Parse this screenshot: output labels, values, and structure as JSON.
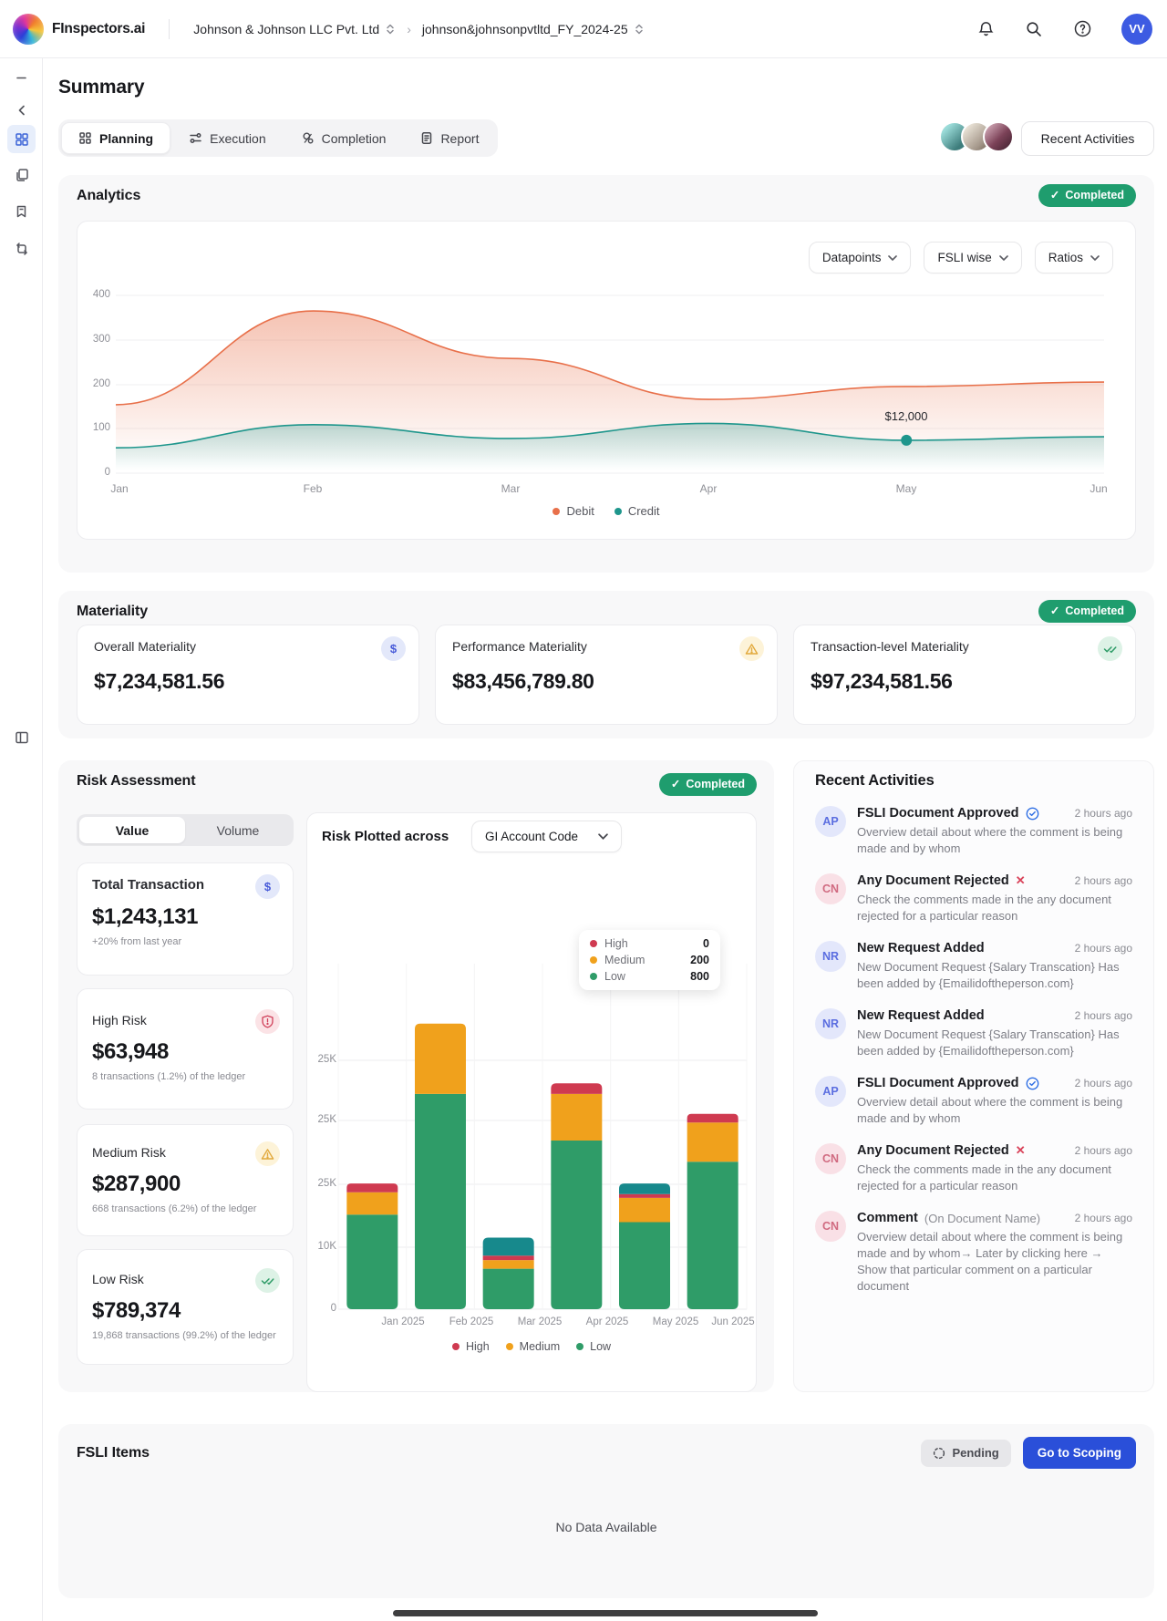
{
  "topbar": {
    "brand": "FInspectors.ai",
    "breadcrumb": {
      "client": "Johnson & Johnson LLC Pvt. Ltd",
      "engagement": "johnson&johnsonpvtltd_FY_2024-25"
    },
    "avatar_initials": "VV"
  },
  "page_title": "Summary",
  "tabs": [
    {
      "label": "Planning"
    },
    {
      "label": "Execution"
    },
    {
      "label": "Completion"
    },
    {
      "label": "Report"
    }
  ],
  "recent_activities_button": "Recent Activities",
  "status": {
    "completed": "Completed",
    "pending": "Pending"
  },
  "analytics": {
    "title": "Analytics",
    "dropdowns": [
      "Datapoints",
      "FSLI wise",
      "Ratios"
    ]
  },
  "materiality": {
    "title": "Materiality",
    "cards": [
      {
        "label": "Overall Materiality",
        "value": "$7,234,581.56"
      },
      {
        "label": "Performance Materiality",
        "value": "$83,456,789.80"
      },
      {
        "label": "Transaction-level Materiality",
        "value": "$97,234,581.56"
      }
    ]
  },
  "risk": {
    "title": "Risk Assessment",
    "toggle": [
      "Value",
      "Volume"
    ],
    "cards": [
      {
        "label": "Total Transaction",
        "value": "$1,243,131",
        "note": "+20% from last year"
      },
      {
        "label": "High Risk",
        "value": "$63,948",
        "note": "8 transactions (1.2%) of the ledger"
      },
      {
        "label": "Medium Risk",
        "value": "$287,900",
        "note": "668 transactions (6.2%) of the ledger"
      },
      {
        "label": "Low Risk",
        "value": "$789,374",
        "note": "19,868 transactions (99.2%) of the ledger"
      }
    ],
    "chart_title": "Risk Plotted across",
    "chart_dropdown": "GI Account Code",
    "tooltip": [
      {
        "label": "High",
        "value": "0",
        "color": "#cf3a50"
      },
      {
        "label": "Medium",
        "value": "200",
        "color": "#f0a11c"
      },
      {
        "label": "Low",
        "value": "800",
        "color": "#2f9c68"
      }
    ]
  },
  "activities": {
    "title": "Recent Activities",
    "items": [
      {
        "avatar": "AP",
        "title": "FSLI Document Approved",
        "time": "2 hours ago",
        "body": "Overview detail about where the comment is being made and by whom"
      },
      {
        "avatar": "CN",
        "title": "Any Document Rejected",
        "time": "2 hours ago",
        "body": "Check the comments made in the any document rejected for a particular reason"
      },
      {
        "avatar": "NR",
        "title": "New Request Added",
        "time": "2 hours ago",
        "body": "New Document Request {Salary Transcation} Has been added by {Emailidoftheperson.com}"
      },
      {
        "avatar": "NR",
        "title": "New Request Added",
        "time": "2 hours ago",
        "body": "New Document Request {Salary Transcation} Has been added by {Emailidoftheperson.com}"
      },
      {
        "avatar": "AP",
        "title": "FSLI Document Approved",
        "time": "2 hours ago",
        "body": "Overview detail about where the comment is being made and by whom"
      },
      {
        "avatar": "CN",
        "title": "Any Document Rejected",
        "time": "2 hours ago",
        "body": "Check the comments made in the any document rejected for a particular reason"
      },
      {
        "avatar": "CN",
        "title": "Comment",
        "suffix": "(On Document Name)",
        "time": "2 hours ago",
        "body": "Overview detail about where the comment is being made and by whom→ Later by clicking here → Show that particular comment on a particular document"
      }
    ]
  },
  "fsli": {
    "title": "FSLI Items",
    "button": "Go to Scoping",
    "empty": "No Data Available"
  },
  "chart_data": [
    {
      "type": "area",
      "title": "Analytics — Debit vs Credit by month",
      "categories": [
        "Jan",
        "Feb",
        "Mar",
        "Apr",
        "May",
        "Jun"
      ],
      "series": [
        {
          "name": "Debit",
          "color": "#e8704a",
          "values": [
            154,
            365,
            258,
            166,
            195,
            205
          ]
        },
        {
          "name": "Credit",
          "color": "#1e968c",
          "values": [
            57,
            109,
            78,
            112,
            74,
            82
          ]
        }
      ],
      "ylim": [
        0,
        400
      ],
      "yticks": [
        "400",
        "300",
        "200",
        "100",
        "0"
      ],
      "grid": true,
      "legend_position": "bottom",
      "annotation": {
        "text": "$12,000",
        "series": "Credit",
        "category": "May"
      }
    },
    {
      "type": "bar",
      "stacked": true,
      "title": "Risk Plotted across GI Account Code",
      "categories": [
        "Jan 2025",
        "Feb 2025",
        "Mar 2025",
        "Apr 2025",
        "May 2025",
        "Jun 2025"
      ],
      "series": [
        {
          "name": "Low",
          "color": "#2f9c68",
          "values": [
            15.2,
            34.6,
            6.5,
            27.1,
            14.0,
            23.7
          ]
        },
        {
          "name": "Medium",
          "color": "#f0a11c",
          "values": [
            3.6,
            11.3,
            1.4,
            7.5,
            3.9,
            6.3
          ]
        },
        {
          "name": "High",
          "color": "#cf3a50",
          "values": [
            1.4,
            0,
            0.7,
            1.7,
            0.6,
            1.4
          ]
        },
        {
          "name": "Other",
          "color": "#17898c",
          "values": [
            0,
            0,
            2.9,
            0,
            1.7,
            0
          ]
        }
      ],
      "ytick_labels": [
        "25K",
        "25K",
        "25K",
        "10K",
        "0"
      ],
      "legend": [
        "High",
        "Medium",
        "Low"
      ],
      "legend_position": "bottom"
    }
  ]
}
